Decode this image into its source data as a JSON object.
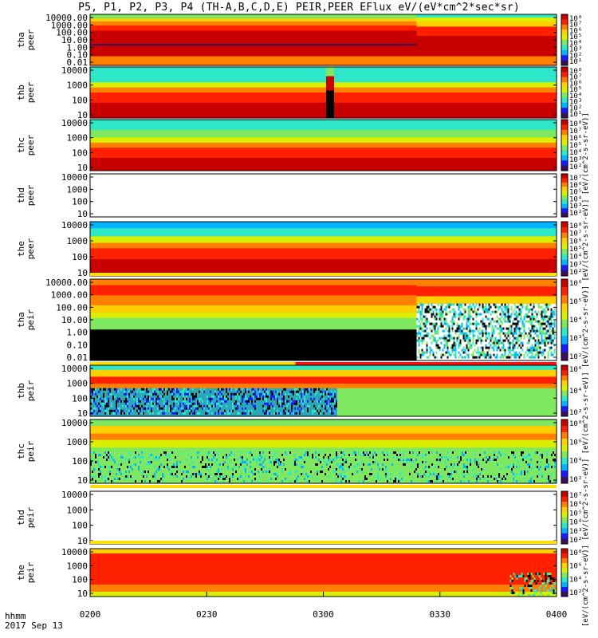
{
  "title": "P5, P1, P2, P3, P4 (TH-A,B,C,D,E) PEIR,PEER EFlux eV/(eV*cm^2*sec*sr)",
  "x_label_line1": "hhmm",
  "x_label_line2": "2017 Sep 13",
  "colorbar_caption": "[eV/(cm^2-s-sr-eV)] [eV/(cm^2-s-sr-eV)] [eV/(cm^2-s-sr-eV)] [eV/(cm^2-s-sr-eV)] [eV/(cm^2-s-sr-eV)] [eV/(cm^2-s-sr-eV)]",
  "chart_data": {
    "type": "heatmap",
    "x_axis": {
      "ticks": [
        "0200",
        "0230",
        "0300",
        "0330",
        "0400"
      ],
      "range": [
        "02:00",
        "04:00"
      ]
    },
    "color_scale": [
      "#3a0f5c",
      "#1a1aff",
      "#00b4ff",
      "#2ee6c8",
      "#7ee860",
      "#d8f000",
      "#ffd000",
      "#ff8000",
      "#ff2000",
      "#c80000"
    ],
    "panels": [
      {
        "id": "tha-peer",
        "label1": "tha",
        "label2": "peer",
        "yticks": [
          "10000.00",
          "1000.00",
          "100.00",
          "10.00",
          "1.00",
          "0.10",
          "0.01"
        ],
        "colorbar_ticks": [
          "10^8",
          "10^7",
          "10^6",
          "10^5",
          "10^4",
          "10^3",
          "10^2",
          "10^1"
        ],
        "has_data": true
      },
      {
        "id": "thb-peer",
        "label1": "thb",
        "label2": "peer",
        "yticks": [
          "10000",
          "1000",
          "100",
          "10"
        ],
        "colorbar_ticks": [
          "10^8",
          "10^7",
          "10^6",
          "10^5",
          "10^4",
          "10^3",
          "10^2",
          "10^1"
        ],
        "has_data": true
      },
      {
        "id": "thc-peer",
        "label1": "thc",
        "label2": "peer",
        "yticks": [
          "10000",
          "1000",
          "100",
          "10"
        ],
        "colorbar_ticks": [
          "10^8",
          "10^7",
          "10^6",
          "10^5",
          "10^4",
          "10^3",
          "10^2"
        ],
        "has_data": true
      },
      {
        "id": "thd-peer",
        "label1": "thd",
        "label2": "peer",
        "yticks": [
          "10000",
          "1000",
          "100",
          "10"
        ],
        "colorbar_ticks": [
          "10^7",
          "10^6",
          "10^5",
          "10^4",
          "10^3",
          "10^2"
        ],
        "has_data": false
      },
      {
        "id": "the-peer",
        "label1": "the",
        "label2": "peer",
        "yticks": [
          "10000",
          "1000",
          "100",
          "10"
        ],
        "colorbar_ticks": [
          "10^8",
          "10^7",
          "10^6",
          "10^5",
          "10^4",
          "10^3",
          "10^2"
        ],
        "has_data": true
      },
      {
        "id": "tha-peir",
        "label1": "tha",
        "label2": "peir",
        "yticks": [
          "10000.00",
          "1000.00",
          "100.00",
          "10.00",
          "1.00",
          "0.10",
          "0.01"
        ],
        "colorbar_ticks": [
          "10^6",
          "10^5",
          "10^4",
          "10^3",
          "10^2"
        ],
        "has_data": true
      },
      {
        "id": "thb-peir",
        "label1": "thb",
        "label2": "peir",
        "yticks": [
          "10000",
          "1000",
          "100",
          "10"
        ],
        "colorbar_ticks": [
          "10^6",
          "10^4",
          "10^2"
        ],
        "has_data": true
      },
      {
        "id": "thc-peir",
        "label1": "thc",
        "label2": "peir",
        "yticks": [
          "10000",
          "1000",
          "100",
          "10"
        ],
        "colorbar_ticks": [
          "10^8",
          "10^6",
          "10^4",
          "10^2"
        ],
        "has_data": true
      },
      {
        "id": "thd-peir",
        "label1": "thd",
        "label2": "peir",
        "yticks": [
          "10000",
          "1000",
          "100",
          "10"
        ],
        "colorbar_ticks": [
          "10^7",
          "10^6",
          "10^5",
          "10^4",
          "10^3",
          "10^2"
        ],
        "has_data": false
      },
      {
        "id": "the-peir",
        "label1": "the",
        "label2": "peir",
        "yticks": [
          "10000",
          "1000",
          "100",
          "10"
        ],
        "colorbar_ticks": [
          "10^8",
          "10^6",
          "10^4",
          "10^2"
        ],
        "has_data": true
      }
    ]
  }
}
